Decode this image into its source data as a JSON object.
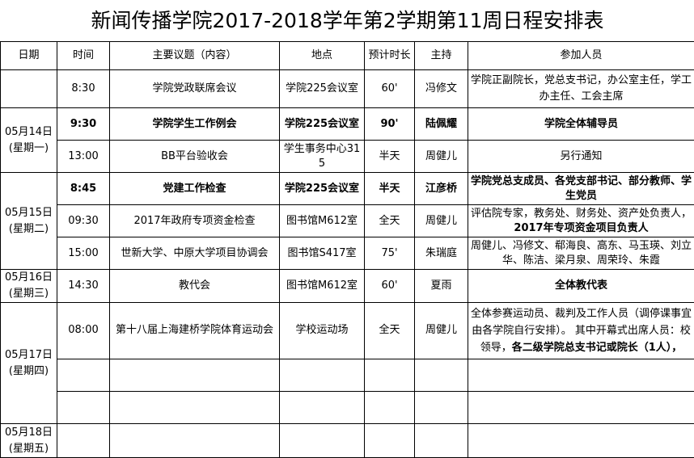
{
  "title": "新闻传播学院2017-2018学年第2学期第11周日程安排表",
  "headers": [
    "日期",
    "时间",
    "主要议题（内容）",
    "地点",
    "预计时长",
    "主持",
    "参加人员"
  ],
  "dates": [
    {
      "date": "05月14日",
      "weekday": "(星期一)"
    },
    {
      "date": "05月15日",
      "weekday": "(星期二)"
    },
    {
      "date": "05月16日",
      "weekday": "(星期三)"
    },
    {
      "date": "05月17日",
      "weekday": "(星期四)"
    },
    {
      "date": "05月18日",
      "weekday": "(星期五)"
    }
  ],
  "rows": [
    {
      "time": "8:30",
      "topic": "学院党政联席会议",
      "place": "学院225会议室",
      "duration": "60'",
      "host": "冯修文",
      "attendees": "学院正副院长，党总支书记，办公室主任，学工办主任、工会主席"
    },
    {
      "time": "9:30",
      "topic": "学院学生工作例会",
      "place": "学院225会议室",
      "duration": "90'",
      "host": "陆佩耀",
      "attendees": "学院全体辅导员"
    },
    {
      "time": "13:00",
      "topic": "BB平台验收会",
      "place": "学生事务中心315",
      "duration": "半天",
      "host": "周健儿",
      "attendees": "另行通知"
    },
    {
      "time": "8:45",
      "topic": "党建工作检查",
      "place": "学院225会议室",
      "duration": "半天",
      "host": "江彦桥",
      "attendees": "学院党总支成员、各党支部书记、部分教师、学生党员"
    },
    {
      "time": "09:30",
      "topic": "2017年政府专项资金检查",
      "place": "图书馆M612室",
      "duration": "全天",
      "host": "周健儿",
      "attendees": "评估院专家，教务处、财务处、资产处负责人，",
      "attendees_bold": "2017年专项资金项目负责人"
    },
    {
      "time": "15:00",
      "topic": "世新大学、中原大学项目协调会",
      "place": "图书馆S417室",
      "duration": "75'",
      "host": "朱瑞庭",
      "attendees": "周健儿、冯修文、郗海良、高东、马玉瑛、刘立华、陈洁、梁月泉、周荣玲、朱霞"
    },
    {
      "time": "14:30",
      "topic": "教代会",
      "place": "图书馆M612室",
      "duration": "60'",
      "host": "夏雨",
      "attendees": "全体教代表"
    },
    {
      "time": "08:00",
      "topic": "第十八届上海建桥学院体育运动会",
      "place": "学校运动场",
      "duration": "全天",
      "host": "周健儿",
      "attendees": "全体参赛运动员、裁判及工作人员（调停课事宜由各学院自行安排）。 其中开幕式出席人员：校领导，",
      "attendees_bold": "各二级学院总支书记或院长（1人），"
    }
  ]
}
